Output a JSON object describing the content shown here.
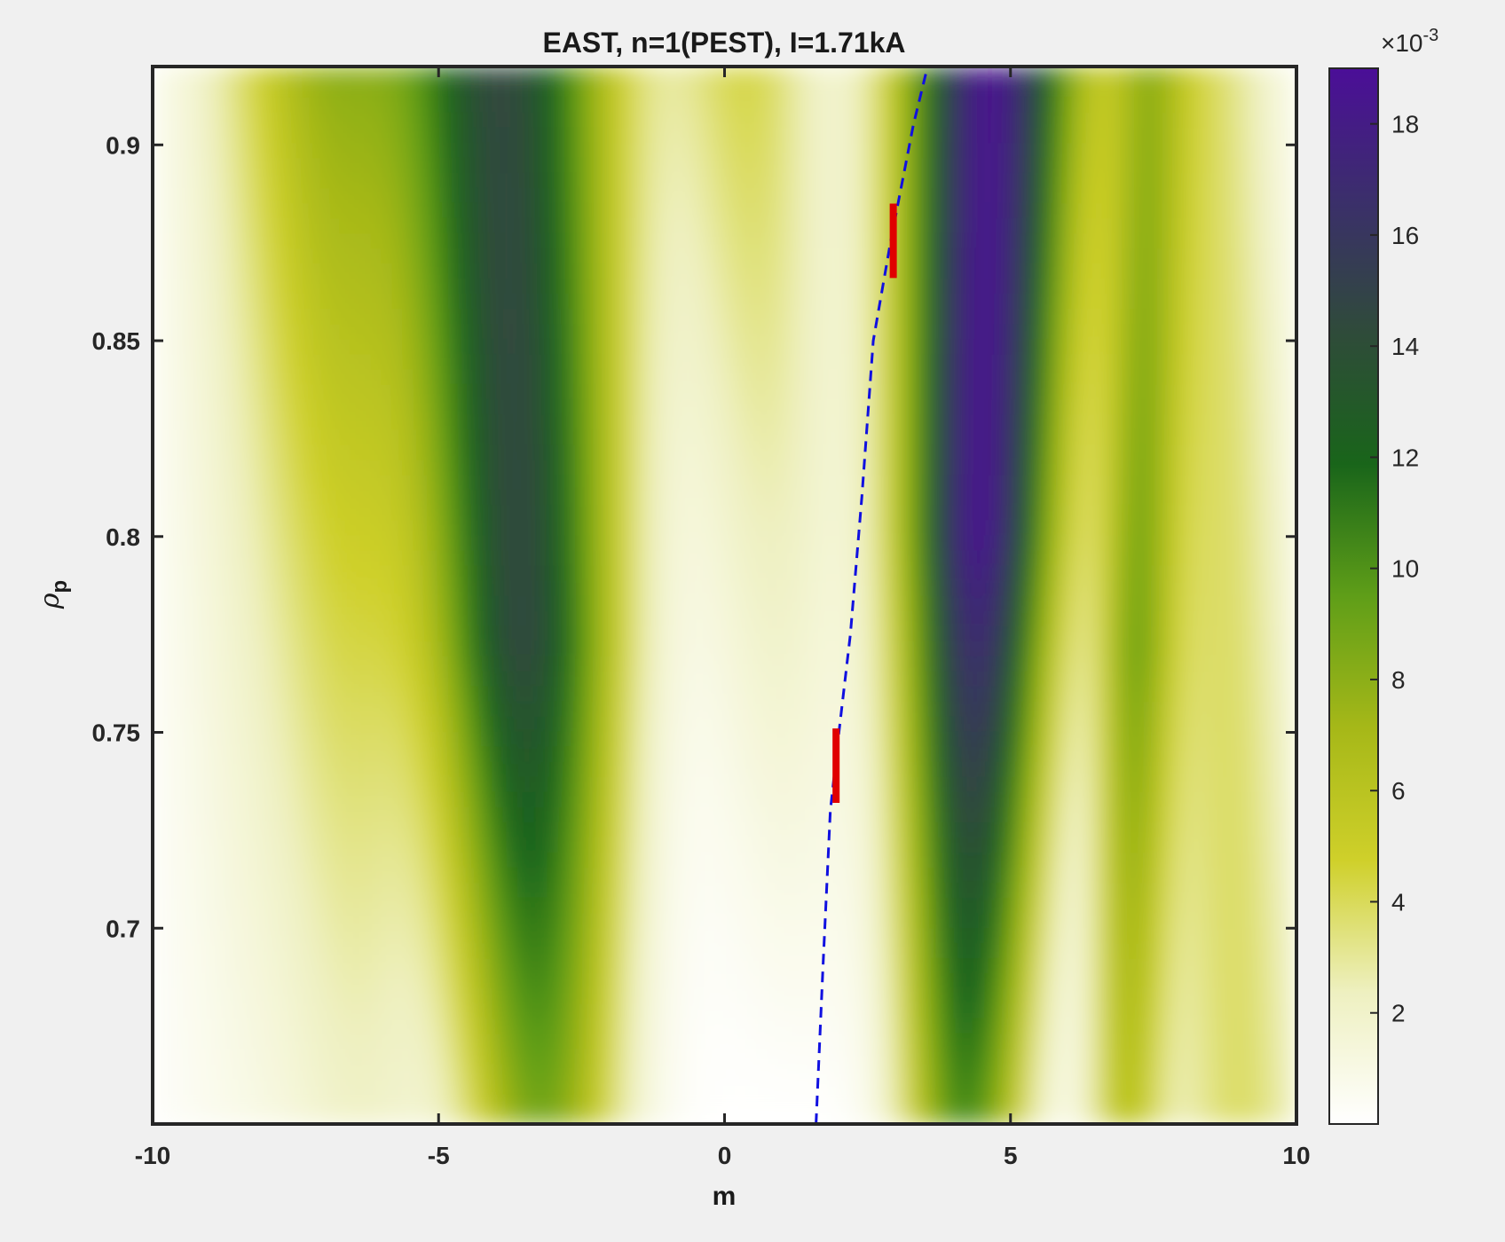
{
  "chart_data": {
    "type": "heatmap",
    "title": "EAST, n=1(PEST), I=1.71kA",
    "xlabel": "m",
    "ylabel_symbol": "ρ",
    "ylabel_subscript": "p",
    "xlim": [
      -10,
      10
    ],
    "ylim": [
      0.65,
      0.92
    ],
    "xticks": [
      "-10",
      "-5",
      "0",
      "5",
      "10"
    ],
    "yticks": [
      "0.7",
      "0.75",
      "0.8",
      "0.85",
      "0.9"
    ],
    "colorbar": {
      "range": [
        0,
        19
      ],
      "ticks": [
        "2",
        "4",
        "6",
        "8",
        "10",
        "12",
        "14",
        "16",
        "18"
      ],
      "exponent_base": "×10",
      "exponent": "-3",
      "colors": [
        "#ffffff",
        "#eef0c0",
        "#cfd02a",
        "#a6b818",
        "#5f9e18",
        "#19651a",
        "#2f4b3a",
        "#3b2f6b",
        "#4b0e98"
      ]
    },
    "bands": [
      {
        "m_center": -3.5,
        "peak": 15.0,
        "shape": "broad V, widest near bottom"
      },
      {
        "m_center": 4.5,
        "peak": 19.0,
        "shape": "V, narrowest at bottom"
      },
      {
        "m_center": 7.0,
        "peak": 9.5,
        "shape": "weak secondary band"
      },
      {
        "m_center": -6.5,
        "peak": 6.0,
        "shape": "weak sidebands"
      }
    ],
    "resonance_curve": {
      "color": "#1010e0",
      "style": "dashed",
      "points": [
        [
          1.6,
          0.65
        ],
        [
          1.72,
          0.69
        ],
        [
          1.85,
          0.73
        ],
        [
          2.0,
          0.75
        ],
        [
          2.2,
          0.775
        ],
        [
          2.4,
          0.81
        ],
        [
          2.6,
          0.85
        ],
        [
          2.9,
          0.875
        ],
        [
          3.1,
          0.89
        ],
        [
          3.3,
          0.905
        ],
        [
          3.55,
          0.92
        ]
      ]
    },
    "rational_surface_markers": {
      "color": "#e00000",
      "segments": [
        [
          1.95,
          0.732,
          0.751
        ],
        [
          2.95,
          0.866,
          0.885
        ]
      ]
    }
  }
}
